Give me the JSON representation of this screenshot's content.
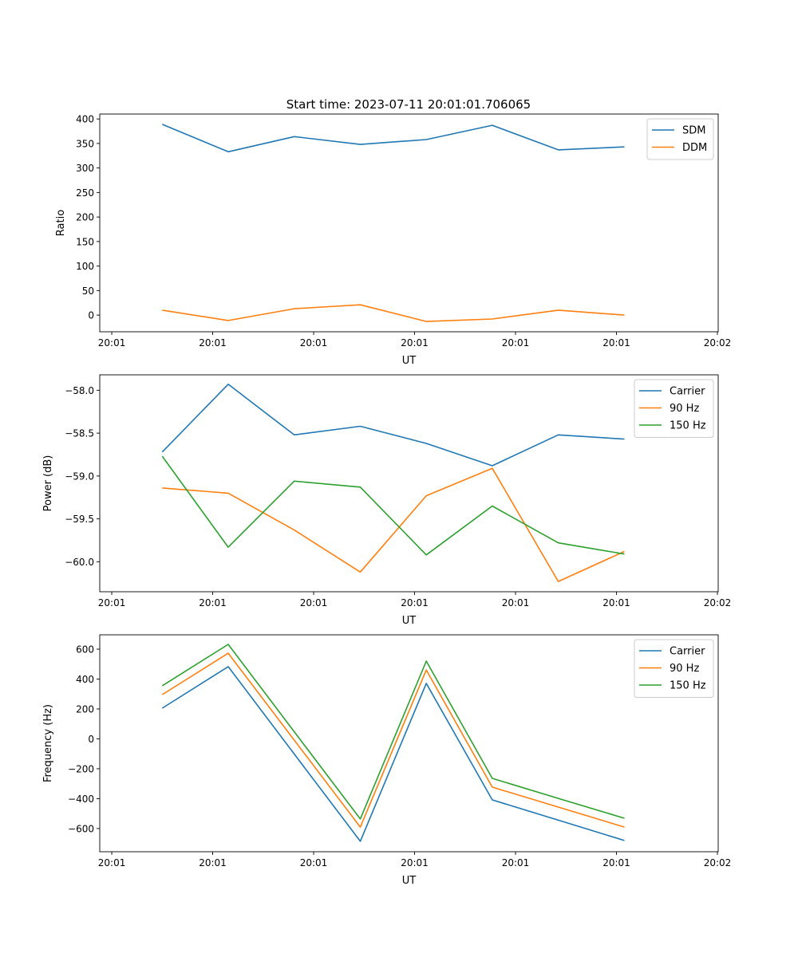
{
  "title": "Start time: 2023-07-11 20:01:01.706065",
  "colors": {
    "c0": "#1f77b4",
    "c1": "#ff7f0e",
    "c2": "#2ca02c"
  },
  "chart_data": [
    {
      "type": "line",
      "xlabel": "UT",
      "ylabel": "Ratio",
      "x": [
        0.5,
        1.154,
        1.808,
        2.462,
        3.116,
        3.77,
        4.424,
        5.078
      ],
      "xticks": [
        0,
        1,
        2,
        3,
        4,
        5,
        6
      ],
      "xtick_labels": [
        "20:01",
        "20:01",
        "20:01",
        "20:01",
        "20:01",
        "20:01",
        "20:02"
      ],
      "xlim": [
        -0.119,
        6.008
      ],
      "ylim": [
        -34,
        410
      ],
      "yticks": [
        0,
        50,
        100,
        150,
        200,
        250,
        300,
        350,
        400
      ],
      "ytick_labels": [
        "0",
        "50",
        "100",
        "150",
        "200",
        "250",
        "300",
        "350",
        "400"
      ],
      "legend": "top-right",
      "series": [
        {
          "name": "SDM",
          "color": "#1f77b4",
          "values": [
            389,
            333,
            364,
            348,
            358,
            387,
            337,
            343
          ]
        },
        {
          "name": "DDM",
          "color": "#ff7f0e",
          "values": [
            10,
            -11,
            13,
            21,
            -13,
            -8,
            10,
            0
          ]
        }
      ]
    },
    {
      "type": "line",
      "xlabel": "UT",
      "ylabel": "Power (dB)",
      "x": [
        0.5,
        1.154,
        1.808,
        2.462,
        3.116,
        3.77,
        4.424,
        5.078
      ],
      "xticks": [
        0,
        1,
        2,
        3,
        4,
        5,
        6
      ],
      "xtick_labels": [
        "20:01",
        "20:01",
        "20:01",
        "20:01",
        "20:01",
        "20:01",
        "20:02"
      ],
      "xlim": [
        -0.119,
        6.008
      ],
      "ylim": [
        -60.35,
        -57.82
      ],
      "yticks": [
        -60.0,
        -59.5,
        -59.0,
        -58.5,
        -58.0
      ],
      "ytick_labels": [
        "−60.0",
        "−59.5",
        "−59.0",
        "−58.5",
        "−58.0"
      ],
      "legend": "top-right",
      "series": [
        {
          "name": "Carrier",
          "color": "#1f77b4",
          "values": [
            -58.72,
            -57.93,
            -58.52,
            -58.42,
            -58.62,
            -58.88,
            -58.52,
            -58.57
          ]
        },
        {
          "name": "90 Hz",
          "color": "#ff7f0e",
          "values": [
            -59.14,
            -59.2,
            -59.63,
            -60.12,
            -59.23,
            -58.91,
            -60.23,
            -59.88
          ]
        },
        {
          "name": "150 Hz",
          "color": "#2ca02c",
          "values": [
            -58.77,
            -59.83,
            -59.06,
            -59.13,
            -59.92,
            -59.35,
            -59.78,
            -59.91
          ]
        }
      ]
    },
    {
      "type": "line",
      "xlabel": "UT",
      "ylabel": "Frequency (Hz)",
      "x": [
        0.5,
        1.154,
        1.808,
        2.462,
        3.116,
        3.77,
        4.424,
        5.078
      ],
      "xticks": [
        0,
        1,
        2,
        3,
        4,
        5,
        6
      ],
      "xtick_labels": [
        "20:01",
        "20:01",
        "20:01",
        "20:01",
        "20:01",
        "20:01",
        "20:02"
      ],
      "xlim": [
        -0.119,
        6.008
      ],
      "ylim": [
        -755,
        696
      ],
      "yticks": [
        -600,
        -400,
        -200,
        0,
        200,
        400,
        600
      ],
      "ytick_labels": [
        "−600",
        "−400",
        "−200",
        "0",
        "200",
        "400",
        "600"
      ],
      "legend": "top-right",
      "series": [
        {
          "name": "Carrier",
          "color": "#1f77b4",
          "values": [
            205,
            483,
            -101,
            -685,
            371,
            -408,
            -544,
            -680
          ]
        },
        {
          "name": "90 Hz",
          "color": "#ff7f0e",
          "values": [
            296,
            573,
            -8,
            -590,
            461,
            -323,
            -456,
            -590
          ]
        },
        {
          "name": "150 Hz",
          "color": "#2ca02c",
          "values": [
            355,
            632,
            48,
            -536,
            520,
            -264,
            -398,
            -531
          ]
        }
      ]
    }
  ]
}
